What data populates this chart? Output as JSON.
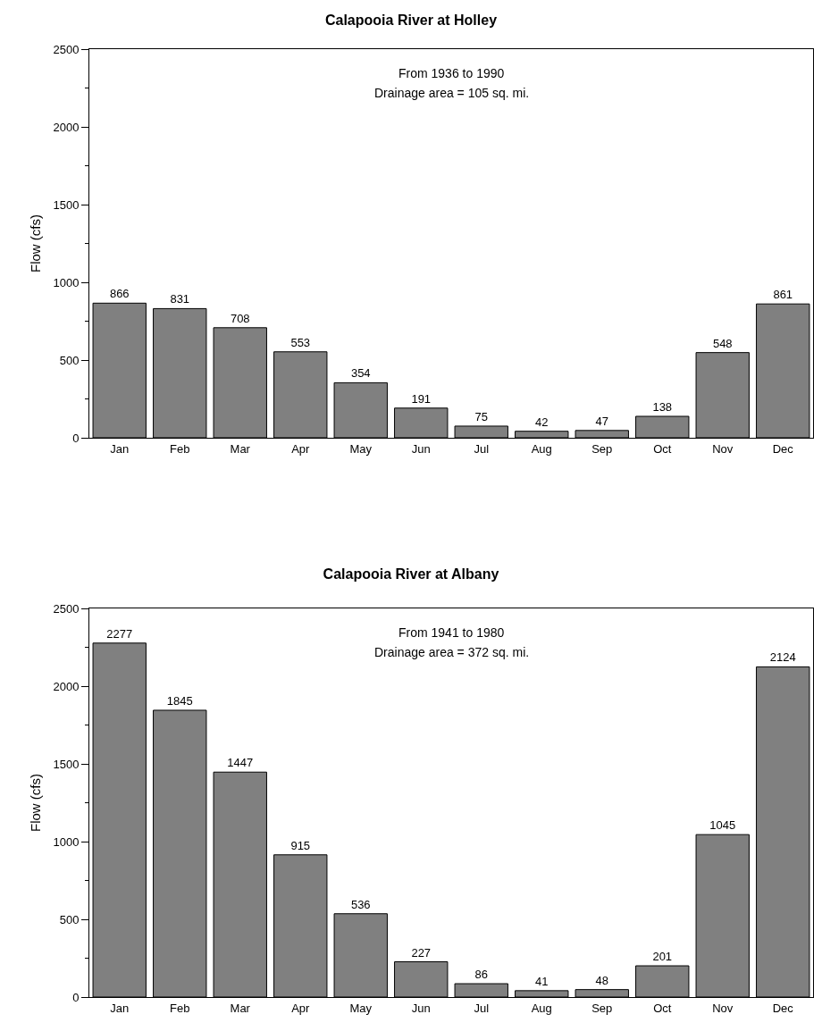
{
  "chart_data": [
    {
      "type": "bar",
      "title": "Calapooia River at Holley",
      "ylabel": "Flow (cfs)",
      "annotations": [
        "From 1936 to 1990",
        "Drainage area = 105 sq. mi."
      ],
      "categories": [
        "Jan",
        "Feb",
        "Mar",
        "Apr",
        "May",
        "Jun",
        "Jul",
        "Aug",
        "Sep",
        "Oct",
        "Nov",
        "Dec"
      ],
      "values": [
        866,
        831,
        708,
        553,
        354,
        191,
        75,
        42,
        47,
        138,
        548,
        861
      ],
      "color": "#808080",
      "data_labels": true,
      "grid": false,
      "ylim": [
        0,
        2500
      ],
      "yticks": [
        0,
        {
          "value": 250,
          "label": null
        },
        500,
        {
          "value": 750,
          "label": null
        },
        1000,
        {
          "value": 1250,
          "label": null
        },
        1500,
        {
          "value": 1750,
          "label": null
        },
        2000,
        {
          "value": 2250,
          "label": null
        },
        2500
      ]
    },
    {
      "type": "bar",
      "title": "Calapooia River at Albany",
      "ylabel": "Flow (cfs)",
      "annotations": [
        "From 1941 to 1980",
        "Drainage area = 372 sq. mi."
      ],
      "categories": [
        "Jan",
        "Feb",
        "Mar",
        "Apr",
        "May",
        "Jun",
        "Jul",
        "Aug",
        "Sep",
        "Oct",
        "Nov",
        "Dec"
      ],
      "values": [
        2277,
        1845,
        1447,
        915,
        536,
        227,
        86,
        41,
        48,
        201,
        1045,
        2124
      ],
      "color": "#808080",
      "data_labels": true,
      "grid": false,
      "ylim": [
        0,
        2500
      ],
      "yticks": [
        0,
        {
          "value": 250,
          "label": null
        },
        500,
        {
          "value": 750,
          "label": null
        },
        1000,
        {
          "value": 1250,
          "label": null
        },
        1500,
        {
          "value": 1750,
          "label": null
        },
        2000,
        {
          "value": 2250,
          "label": null
        },
        2500
      ]
    }
  ]
}
